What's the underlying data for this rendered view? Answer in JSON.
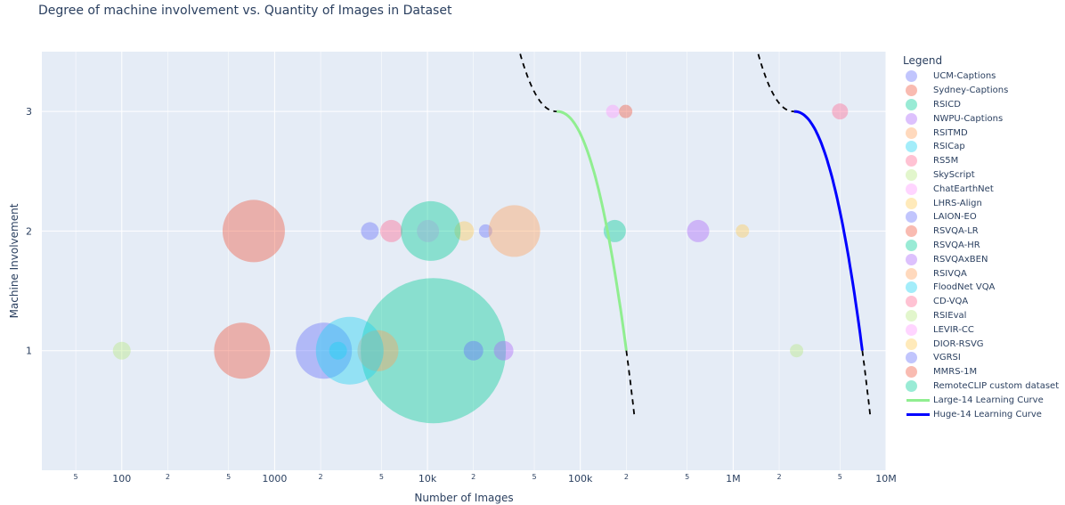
{
  "chart_data": {
    "type": "scatter",
    "title": "Degree of machine involvement vs. Quantity of Images in Dataset",
    "xlabel": "Number of Images",
    "ylabel": "Machine Involvement",
    "x_scale": "log",
    "xlim": [
      30,
      10000000
    ],
    "ylim": [
      0,
      3.5
    ],
    "grid": true,
    "legend_title": "Legend",
    "legend_position": "right",
    "x_ticks_major": [
      {
        "value": 100,
        "label": "100"
      },
      {
        "value": 1000,
        "label": "1000"
      },
      {
        "value": 10000,
        "label": "10k"
      },
      {
        "value": 100000,
        "label": "100k"
      },
      {
        "value": 1000000,
        "label": "1M"
      },
      {
        "value": 10000000,
        "label": "10M"
      }
    ],
    "x_ticks_minor": [
      {
        "value": 50,
        "label": "5"
      },
      {
        "value": 200,
        "label": "2"
      },
      {
        "value": 500,
        "label": "5"
      },
      {
        "value": 2000,
        "label": "2"
      },
      {
        "value": 5000,
        "label": "5"
      },
      {
        "value": 20000,
        "label": "2"
      },
      {
        "value": 50000,
        "label": "5"
      },
      {
        "value": 200000,
        "label": "2"
      },
      {
        "value": 500000,
        "label": "5"
      },
      {
        "value": 2000000,
        "label": "2"
      },
      {
        "value": 5000000,
        "label": "5"
      }
    ],
    "y_ticks": [
      {
        "value": 1,
        "label": "1"
      },
      {
        "value": 2,
        "label": "2"
      },
      {
        "value": 3,
        "label": "3"
      }
    ],
    "series": [
      {
        "name": "UCM-Captions",
        "color": "#636efa",
        "points": [
          {
            "x": 2100,
            "y": 1,
            "size": 63
          }
        ]
      },
      {
        "name": "Sydney-Captions",
        "color": "#EF553B",
        "points": [
          {
            "x": 613,
            "y": 1,
            "size": 63
          }
        ]
      },
      {
        "name": "RSICD",
        "color": "#00cc96",
        "points": [
          {
            "x": 10921,
            "y": 1,
            "size": 163
          }
        ]
      },
      {
        "name": "NWPU-Captions",
        "color": "#ab63fa",
        "points": [
          {
            "x": 31500,
            "y": 1,
            "size": 22
          }
        ]
      },
      {
        "name": "RSITMD",
        "color": "#FFA15A",
        "points": [
          {
            "x": 4743,
            "y": 1,
            "size": 46
          }
        ]
      },
      {
        "name": "RSICap",
        "color": "#19d3f3",
        "points": [
          {
            "x": 3100,
            "y": 1,
            "size": 76
          }
        ]
      },
      {
        "name": "RS5M",
        "color": "#FF6692",
        "points": [
          {
            "x": 5000000,
            "y": 3,
            "size": 18
          }
        ]
      },
      {
        "name": "SkyScript",
        "color": "#B6E880",
        "points": [
          {
            "x": 2600000,
            "y": 1,
            "size": 15
          }
        ]
      },
      {
        "name": "ChatEarthNet",
        "color": "#FF97FF",
        "points": [
          {
            "x": 163000,
            "y": 3,
            "size": 15
          }
        ]
      },
      {
        "name": "LHRS-Align",
        "color": "#FECB52",
        "points": [
          {
            "x": 1150000,
            "y": 2,
            "size": 15
          }
        ]
      },
      {
        "name": "LAION-EO",
        "color": "#636efa",
        "points": [
          {
            "x": 24000,
            "y": 2,
            "size": 15
          }
        ]
      },
      {
        "name": "RSVQA-LR",
        "color": "#EF553B",
        "points": [
          {
            "x": 198000,
            "y": 3,
            "size": 15
          }
        ]
      },
      {
        "name": "RSVQA-HR",
        "color": "#00cc96",
        "points": [
          {
            "x": 168000,
            "y": 2,
            "size": 25
          }
        ]
      },
      {
        "name": "RSVQAxBEN",
        "color": "#ab63fa",
        "points": [
          {
            "x": 590000,
            "y": 2,
            "size": 25
          }
        ]
      },
      {
        "name": "RSIVQA",
        "color": "#FFA15A",
        "points": [
          {
            "x": 37000,
            "y": 2,
            "size": 58
          }
        ]
      },
      {
        "name": "FloodNet VQA",
        "color": "#19d3f3",
        "points": [
          {
            "x": 2600,
            "y": 1,
            "size": 20
          }
        ]
      },
      {
        "name": "CD-VQA",
        "color": "#FF6692",
        "points": [
          {
            "x": 5800,
            "y": 2,
            "size": 25
          }
        ]
      },
      {
        "name": "RSIEval",
        "color": "#B6E880",
        "points": [
          {
            "x": 100,
            "y": 1,
            "size": 20
          }
        ]
      },
      {
        "name": "LEVIR-CC",
        "color": "#FF97FF",
        "points": [
          {
            "x": 10077,
            "y": 2,
            "size": 25
          }
        ]
      },
      {
        "name": "DIOR-RSVG",
        "color": "#FECB52",
        "points": [
          {
            "x": 17400,
            "y": 2,
            "size": 22
          }
        ]
      },
      {
        "name": "VGRSI",
        "color": "#636efa",
        "points": [
          {
            "x": 4200,
            "y": 2,
            "size": 20
          },
          {
            "x": 20000,
            "y": 1,
            "size": 22
          }
        ]
      },
      {
        "name": "MMRS-1M",
        "color": "#EF553B",
        "points": [
          {
            "x": 730,
            "y": 2,
            "size": 70
          }
        ]
      },
      {
        "name": "RemoteCLIP custom dataset",
        "color": "#00cc96",
        "points": [
          {
            "x": 10500,
            "y": 2,
            "size": 67
          }
        ]
      },
      {
        "name": "Large-14 Learning Curve",
        "color": "#90ee90",
        "line": true,
        "x_range": [
          70000,
          200000
        ],
        "y_range": [
          1,
          3
        ]
      },
      {
        "name": "Huge-14 Learning Curve",
        "color": "#0000ff",
        "line": true,
        "x_range": [
          2500000,
          7000000
        ],
        "y_range": [
          1,
          3
        ]
      }
    ]
  }
}
